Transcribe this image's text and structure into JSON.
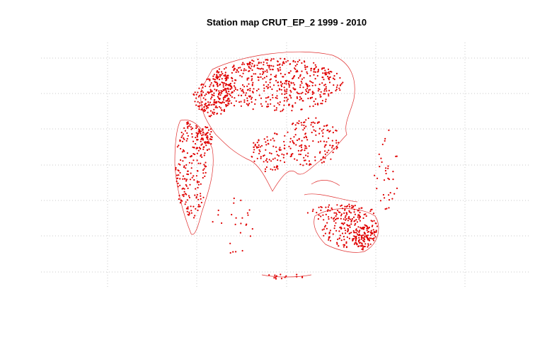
{
  "map": {
    "title": "Station map CRUT_EP_2 1999 - 2010"
  }
}
